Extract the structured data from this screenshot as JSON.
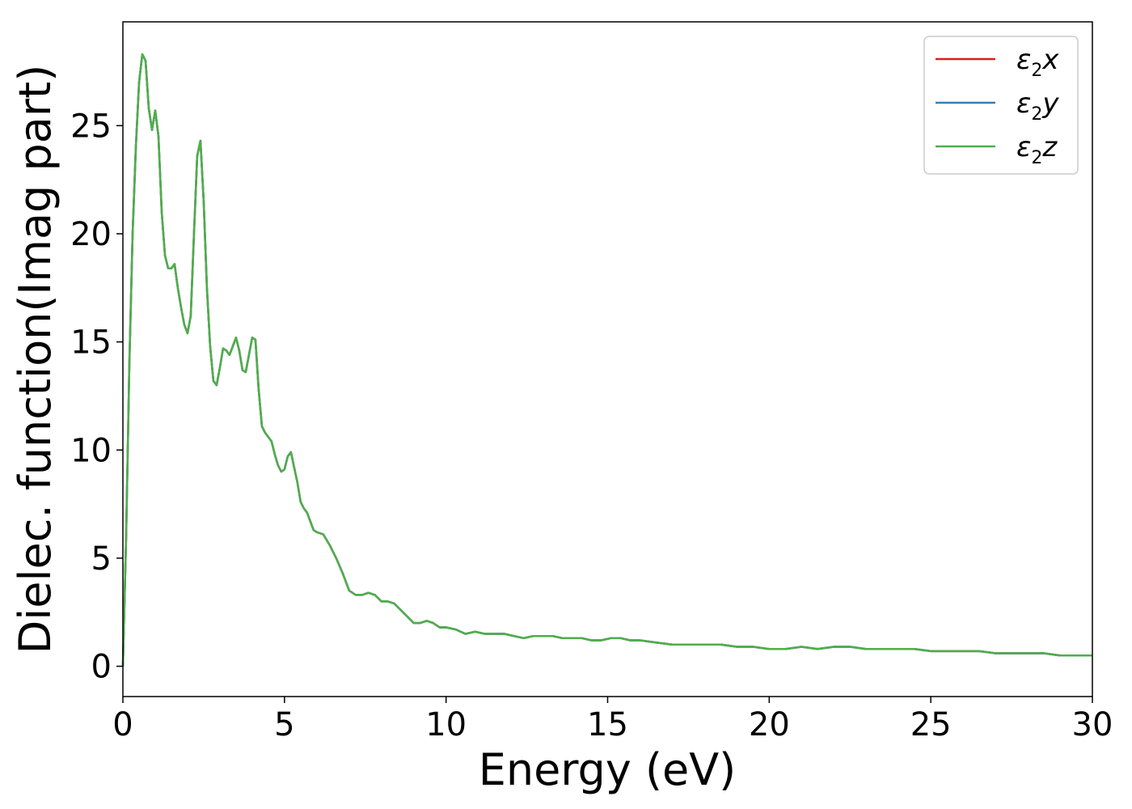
{
  "chart_data": {
    "type": "line",
    "xlabel": "Energy (eV)",
    "ylabel": "Dielec. function(Imag part)",
    "xlim": [
      0,
      30
    ],
    "ylim": [
      -1.4,
      29.8
    ],
    "xticks": [
      "0",
      "5",
      "10",
      "15",
      "20",
      "25",
      "30"
    ],
    "yticks": [
      "0",
      "5",
      "10",
      "15",
      "20",
      "25"
    ],
    "grid": false,
    "legend_position": "top-right",
    "legend": [
      {
        "base": "ε",
        "sub": "2",
        "var": "x",
        "color": "#e41a1c"
      },
      {
        "base": "ε",
        "sub": "2",
        "var": "y",
        "color": "#377eb8"
      },
      {
        "base": "ε",
        "sub": "2",
        "var": "z",
        "color": "#4daf4a"
      }
    ],
    "x": [
      0.0,
      0.1,
      0.2,
      0.3,
      0.4,
      0.5,
      0.6,
      0.7,
      0.8,
      0.9,
      1.0,
      1.1,
      1.2,
      1.3,
      1.4,
      1.5,
      1.6,
      1.7,
      1.8,
      1.9,
      2.0,
      2.1,
      2.2,
      2.3,
      2.4,
      2.5,
      2.6,
      2.7,
      2.8,
      2.9,
      3.0,
      3.1,
      3.2,
      3.3,
      3.4,
      3.5,
      3.6,
      3.7,
      3.8,
      3.9,
      4.0,
      4.1,
      4.2,
      4.3,
      4.4,
      4.5,
      4.6,
      4.7,
      4.8,
      4.9,
      5.0,
      5.1,
      5.2,
      5.3,
      5.4,
      5.5,
      5.6,
      5.7,
      5.8,
      5.9,
      6.0,
      6.2,
      6.4,
      6.6,
      6.8,
      7.0,
      7.2,
      7.4,
      7.6,
      7.8,
      8.0,
      8.2,
      8.4,
      8.6,
      8.8,
      9.0,
      9.2,
      9.4,
      9.6,
      9.8,
      10.0,
      10.3,
      10.6,
      10.9,
      11.2,
      11.5,
      11.8,
      12.1,
      12.4,
      12.7,
      13.0,
      13.3,
      13.6,
      13.9,
      14.2,
      14.5,
      14.8,
      15.1,
      15.4,
      15.7,
      16.0,
      16.5,
      17.0,
      17.5,
      18.0,
      18.5,
      19.0,
      19.5,
      20.0,
      20.5,
      21.0,
      21.5,
      22.0,
      22.5,
      23.0,
      23.5,
      24.0,
      24.5,
      25.0,
      25.5,
      26.0,
      26.5,
      27.0,
      27.5,
      28.0,
      28.5,
      29.0,
      29.5,
      30.0
    ],
    "series": [
      {
        "name": "ε2x",
        "color": "#e41a1c",
        "values": [
          0.0,
          6.0,
          14.0,
          20.0,
          24.0,
          27.0,
          28.3,
          28.0,
          25.8,
          24.8,
          25.7,
          24.5,
          21.0,
          19.0,
          18.4,
          18.4,
          18.6,
          17.5,
          16.6,
          15.8,
          15.4,
          16.2,
          20.0,
          23.6,
          24.3,
          21.5,
          17.5,
          14.8,
          13.2,
          13.0,
          13.8,
          14.7,
          14.6,
          14.4,
          14.8,
          15.2,
          14.6,
          13.7,
          13.6,
          14.4,
          15.2,
          15.1,
          12.8,
          11.1,
          10.8,
          10.6,
          10.4,
          9.8,
          9.3,
          9.0,
          9.1,
          9.7,
          9.9,
          9.2,
          8.5,
          7.6,
          7.3,
          7.1,
          6.7,
          6.3,
          6.2,
          6.1,
          5.6,
          5.0,
          4.3,
          3.5,
          3.3,
          3.3,
          3.4,
          3.3,
          3.0,
          3.0,
          2.9,
          2.6,
          2.3,
          2.0,
          2.0,
          2.1,
          2.0,
          1.8,
          1.8,
          1.7,
          1.5,
          1.6,
          1.5,
          1.5,
          1.5,
          1.4,
          1.3,
          1.4,
          1.4,
          1.4,
          1.3,
          1.3,
          1.3,
          1.2,
          1.2,
          1.3,
          1.3,
          1.2,
          1.2,
          1.1,
          1.0,
          1.0,
          1.0,
          1.0,
          0.9,
          0.9,
          0.8,
          0.8,
          0.9,
          0.8,
          0.9,
          0.9,
          0.8,
          0.8,
          0.8,
          0.8,
          0.7,
          0.7,
          0.7,
          0.7,
          0.6,
          0.6,
          0.6,
          0.6,
          0.5,
          0.5,
          0.5
        ]
      },
      {
        "name": "ε2y",
        "color": "#377eb8",
        "values": [
          0.0,
          6.0,
          14.0,
          20.0,
          24.0,
          27.0,
          28.3,
          28.0,
          25.8,
          24.8,
          25.7,
          24.5,
          21.0,
          19.0,
          18.4,
          18.4,
          18.6,
          17.5,
          16.6,
          15.8,
          15.4,
          16.2,
          20.0,
          23.6,
          24.3,
          21.5,
          17.5,
          14.8,
          13.2,
          13.0,
          13.8,
          14.7,
          14.6,
          14.4,
          14.8,
          15.2,
          14.6,
          13.7,
          13.6,
          14.4,
          15.2,
          15.1,
          12.8,
          11.1,
          10.8,
          10.6,
          10.4,
          9.8,
          9.3,
          9.0,
          9.1,
          9.7,
          9.9,
          9.2,
          8.5,
          7.6,
          7.3,
          7.1,
          6.7,
          6.3,
          6.2,
          6.1,
          5.6,
          5.0,
          4.3,
          3.5,
          3.3,
          3.3,
          3.4,
          3.3,
          3.0,
          3.0,
          2.9,
          2.6,
          2.3,
          2.0,
          2.0,
          2.1,
          2.0,
          1.8,
          1.8,
          1.7,
          1.5,
          1.6,
          1.5,
          1.5,
          1.5,
          1.4,
          1.3,
          1.4,
          1.4,
          1.4,
          1.3,
          1.3,
          1.3,
          1.2,
          1.2,
          1.3,
          1.3,
          1.2,
          1.2,
          1.1,
          1.0,
          1.0,
          1.0,
          1.0,
          0.9,
          0.9,
          0.8,
          0.8,
          0.9,
          0.8,
          0.9,
          0.9,
          0.8,
          0.8,
          0.8,
          0.8,
          0.7,
          0.7,
          0.7,
          0.7,
          0.6,
          0.6,
          0.6,
          0.6,
          0.5,
          0.5,
          0.5
        ]
      },
      {
        "name": "ε2z",
        "color": "#4daf4a",
        "values": [
          0.0,
          6.0,
          14.0,
          20.0,
          24.0,
          27.0,
          28.3,
          28.0,
          25.8,
          24.8,
          25.7,
          24.5,
          21.0,
          19.0,
          18.4,
          18.4,
          18.6,
          17.5,
          16.6,
          15.8,
          15.4,
          16.2,
          20.0,
          23.6,
          24.3,
          21.5,
          17.5,
          14.8,
          13.2,
          13.0,
          13.8,
          14.7,
          14.6,
          14.4,
          14.8,
          15.2,
          14.6,
          13.7,
          13.6,
          14.4,
          15.2,
          15.1,
          12.8,
          11.1,
          10.8,
          10.6,
          10.4,
          9.8,
          9.3,
          9.0,
          9.1,
          9.7,
          9.9,
          9.2,
          8.5,
          7.6,
          7.3,
          7.1,
          6.7,
          6.3,
          6.2,
          6.1,
          5.6,
          5.0,
          4.3,
          3.5,
          3.3,
          3.3,
          3.4,
          3.3,
          3.0,
          3.0,
          2.9,
          2.6,
          2.3,
          2.0,
          2.0,
          2.1,
          2.0,
          1.8,
          1.8,
          1.7,
          1.5,
          1.6,
          1.5,
          1.5,
          1.5,
          1.4,
          1.3,
          1.4,
          1.4,
          1.4,
          1.3,
          1.3,
          1.3,
          1.2,
          1.2,
          1.3,
          1.3,
          1.2,
          1.2,
          1.1,
          1.0,
          1.0,
          1.0,
          1.0,
          0.9,
          0.9,
          0.8,
          0.8,
          0.9,
          0.8,
          0.9,
          0.9,
          0.8,
          0.8,
          0.8,
          0.8,
          0.7,
          0.7,
          0.7,
          0.7,
          0.6,
          0.6,
          0.6,
          0.6,
          0.5,
          0.5,
          0.5
        ]
      }
    ]
  }
}
